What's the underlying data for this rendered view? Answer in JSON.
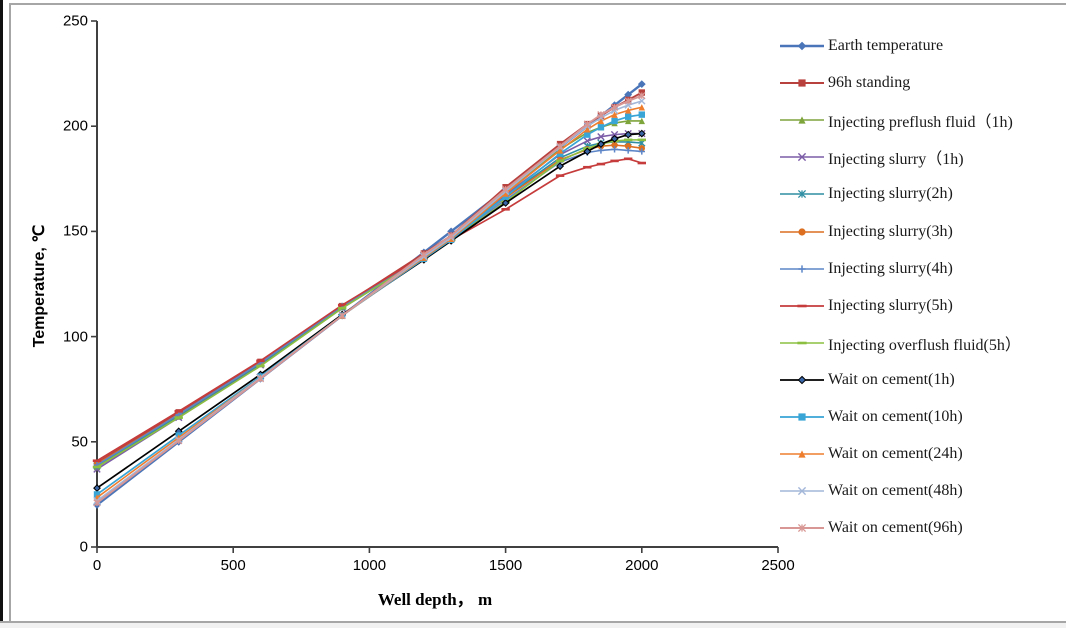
{
  "frame": {
    "background": "#FFFFFF",
    "border_color": "#A6A6A6",
    "edge_color": "#111111",
    "axis_color": "#404040"
  },
  "chart_data": {
    "type": "line",
    "title": "",
    "xlabel": "Well depth， m",
    "ylabel": "Temperature, ℃",
    "xlim": [
      0,
      2500
    ],
    "ylim": [
      0,
      250
    ],
    "x_ticks": [
      0,
      500,
      1000,
      1500,
      2000,
      2500
    ],
    "y_ticks": [
      0,
      50,
      100,
      150,
      200,
      250
    ],
    "grid": false,
    "legend_position": "right",
    "x": [
      0,
      300,
      600,
      900,
      1200,
      1300,
      1500,
      1700,
      1800,
      1850,
      1900,
      1950,
      2000
    ],
    "series": [
      {
        "name": "Earth temperature",
        "color": "#4A76B9",
        "marker": "diamond",
        "line_width": 2.4,
        "values": [
          20,
          50,
          80,
          110,
          140,
          150,
          170,
          190,
          200,
          205,
          210,
          215,
          220
        ]
      },
      {
        "name": "96h standing",
        "color": "#B8413E",
        "marker": "square",
        "line_width": 1.9,
        "values": [
          40,
          64,
          88,
          114.5,
          139.5,
          148,
          171,
          191.5,
          201,
          205,
          209,
          212.5,
          216
        ]
      },
      {
        "name": "Injecting preflush fluid（1h)",
        "color": "#7EA43C",
        "marker": "triangle",
        "line_width": 1.6,
        "values": [
          38,
          62,
          87,
          114,
          138.5,
          147.5,
          169,
          189,
          197,
          199.5,
          201.5,
          202.5,
          202.5
        ]
      },
      {
        "name": "Injecting slurry（1h)",
        "color": "#7B5CA7",
        "marker": "x",
        "line_width": 1.6,
        "values": [
          37,
          61.5,
          86.5,
          113.5,
          138,
          147,
          167.5,
          186.5,
          193,
          195,
          196,
          196.5,
          196.5
        ]
      },
      {
        "name": "Injecting slurry(2h)",
        "color": "#2F8EA3",
        "marker": "star",
        "line_width": 1.6,
        "values": [
          38.5,
          62.5,
          87,
          114,
          138,
          147,
          166.5,
          185,
          190.5,
          192,
          192.5,
          192.5,
          192
        ]
      },
      {
        "name": "Injecting slurry(3h)",
        "color": "#DC6F20",
        "marker": "circle",
        "line_width": 1.6,
        "values": [
          39.5,
          63,
          87.5,
          114.5,
          138,
          147,
          166,
          184,
          189,
          190.5,
          191,
          190.5,
          189.5
        ]
      },
      {
        "name": "Injecting slurry(4h)",
        "color": "#5C85C7",
        "marker": "plus",
        "line_width": 1.6,
        "values": [
          39,
          63,
          87.5,
          114.5,
          138,
          146.5,
          165,
          183,
          187.5,
          188.5,
          189,
          188.5,
          188
        ]
      },
      {
        "name": "Injecting slurry(5h)",
        "color": "#C63B3B",
        "marker": "dash",
        "line_width": 1.7,
        "values": [
          41,
          64.5,
          88.5,
          115,
          138.5,
          146,
          160.5,
          176.5,
          180.5,
          182,
          183.5,
          184.5,
          182.5
        ]
      },
      {
        "name": "Injecting overflush fluid(5h）",
        "color": "#8CBF40",
        "marker": "dash",
        "line_width": 1.6,
        "values": [
          38,
          61.5,
          86,
          113.5,
          137.5,
          146,
          164,
          183.5,
          189.5,
          191.5,
          193,
          193.5,
          193.5
        ]
      },
      {
        "name": "Wait on cement(1h)",
        "color": "#000000",
        "marker": "diamond",
        "marker_fill": "#3A66A7",
        "line_width": 1.7,
        "values": [
          28,
          55,
          82,
          110.5,
          136.5,
          145.5,
          163.5,
          181,
          188,
          191.5,
          194,
          196,
          196.5
        ]
      },
      {
        "name": "Wait on cement(10h)",
        "color": "#38A5D6",
        "marker": "square",
        "line_width": 1.7,
        "values": [
          25,
          53,
          81,
          110,
          137,
          146,
          166.5,
          187,
          196,
          199.5,
          202.5,
          204.5,
          205.5
        ]
      },
      {
        "name": "Wait on cement(24h)",
        "color": "#EE7D2E",
        "marker": "triangle",
        "line_width": 1.6,
        "values": [
          23.5,
          52,
          80.5,
          110,
          137.5,
          146.5,
          168,
          188.5,
          198.5,
          202.5,
          205.5,
          207.5,
          209
        ]
      },
      {
        "name": "Wait on cement(48h)",
        "color": "#A3B7D9",
        "marker": "x",
        "line_width": 1.6,
        "values": [
          22,
          51,
          80.5,
          110,
          138,
          147,
          169,
          190,
          200,
          204,
          207.5,
          210,
          212
        ]
      },
      {
        "name": "Wait on cement(96h)",
        "color": "#D89794",
        "marker": "star",
        "line_width": 1.9,
        "values": [
          21,
          50.5,
          80,
          110,
          139,
          148,
          170,
          190.5,
          201,
          205.5,
          209,
          212,
          214.5
        ]
      }
    ]
  }
}
